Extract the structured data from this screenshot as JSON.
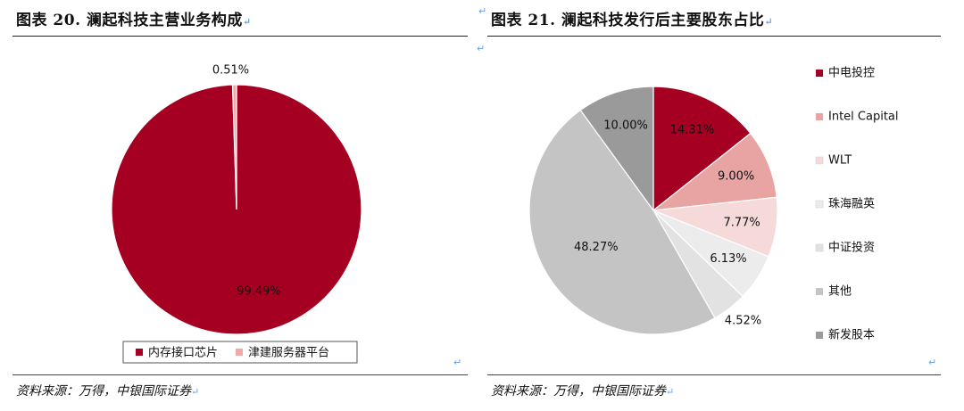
{
  "left": {
    "title": "图表 20. 澜起科技主营业务构成",
    "source": "资料来源：万得，中银国际证券"
  },
  "right": {
    "title": "图表 21. 澜起科技发行后主要股东占比",
    "source": "资料来源：万得，中银国际证券"
  },
  "return_mark": "↵",
  "chart_data": [
    {
      "type": "pie",
      "title": "",
      "categories": [
        "内存接口芯片",
        "津建服务器平台"
      ],
      "values": [
        99.49,
        0.51
      ],
      "labels": [
        "99.49%",
        "0.51%"
      ],
      "colors": [
        "#a50021",
        "#f2aaa8"
      ],
      "legend": "bottom",
      "start_angle_deg": 0
    },
    {
      "type": "pie",
      "title": "",
      "categories": [
        "中电投控",
        "Intel Capital",
        "WLT",
        "珠海融英",
        "中证投资",
        "其他",
        "新发股本"
      ],
      "values": [
        14.31,
        9.0,
        7.77,
        6.13,
        4.52,
        48.27,
        10.0
      ],
      "labels": [
        "14.31%",
        "9.00%",
        "7.77%",
        "6.13%",
        "4.52%",
        "48.27%",
        "10.00%"
      ],
      "colors": [
        "#a50021",
        "#e8a3a3",
        "#f6dada",
        "#ececec",
        "#e2e2e2",
        "#c4c4c4",
        "#9a9a9a"
      ],
      "legend": "right",
      "start_angle_deg": 0
    }
  ]
}
